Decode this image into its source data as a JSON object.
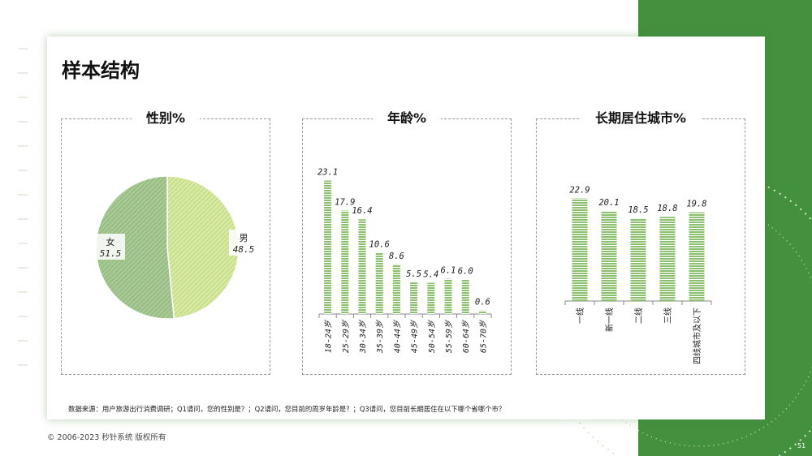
{
  "page": {
    "title": "样本结构",
    "source": "数据来源：用户旅游出行消费调研；Q1请问，您的性别是？；Q2请问，您目前的周岁年龄是？；Q3请问，您目前长期居住在以下哪个省哪个市？",
    "copyright": "© 2006-2023 秒针系统 版权所有",
    "page_number": "51"
  },
  "colors": {
    "green_block": "#43913f",
    "bar_fill": "#8cbf6e",
    "pie_male": "#d8e9a2",
    "pie_female": "#a9c994"
  },
  "chart_data": [
    {
      "type": "pie",
      "title": "性别%",
      "categories": [
        "男",
        "女"
      ],
      "values": [
        48.5,
        51.5
      ],
      "value_labels": [
        "48.5",
        "51.5"
      ]
    },
    {
      "type": "bar",
      "title": "年龄%",
      "categories": [
        "18-24岁",
        "25-29岁",
        "30-34岁",
        "35-39岁",
        "40-44岁",
        "45-49岁",
        "50-54岁",
        "55-59岁",
        "60-64岁",
        "65-70岁"
      ],
      "values": [
        23.1,
        17.9,
        16.4,
        10.6,
        8.6,
        5.5,
        5.4,
        6.1,
        6.0,
        0.6
      ],
      "value_labels": [
        "23.1",
        "17.9",
        "16.4",
        "10.6",
        "8.6",
        "5.5",
        "5.4",
        "6.1",
        "6.0",
        "0.6"
      ],
      "ylim": [
        0,
        25
      ]
    },
    {
      "type": "bar",
      "title": "长期居住城市%",
      "categories": [
        "一线",
        "新一线",
        "二线",
        "三线",
        "四线城市及以下"
      ],
      "values": [
        22.9,
        20.1,
        18.5,
        18.8,
        19.8
      ],
      "value_labels": [
        "22.9",
        "20.1",
        "18.5",
        "18.8",
        "19.8"
      ],
      "ylim": [
        0,
        25
      ]
    }
  ]
}
